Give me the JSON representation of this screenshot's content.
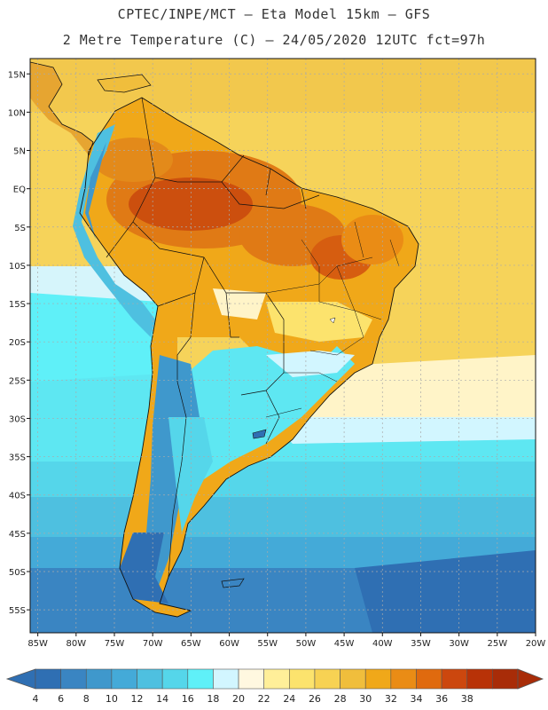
{
  "header": {
    "line1": "CPTEC/INPE/MCT –  Eta Model 15km – GFS",
    "line2": "2 Metre Temperature (C) – 24/05/2020 12UTC fct=97h"
  },
  "axes": {
    "lat_labels": [
      "15N",
      "10N",
      "5N",
      "EQ",
      "5S",
      "10S",
      "15S",
      "20S",
      "25S",
      "30S",
      "35S",
      "40S",
      "45S",
      "50S",
      "55S"
    ],
    "lon_labels": [
      "85W",
      "80W",
      "75W",
      "70W",
      "65W",
      "60W",
      "55W",
      "50W",
      "45W",
      "40W",
      "35W",
      "30W",
      "25W",
      "20W"
    ],
    "lat_range": [
      17,
      -58
    ],
    "lon_range": [
      -86,
      -20
    ]
  },
  "colorbar": {
    "labels": [
      "4",
      "6",
      "8",
      "10",
      "12",
      "14",
      "16",
      "18",
      "20",
      "22",
      "24",
      "26",
      "28",
      "30",
      "32",
      "34",
      "36",
      "38"
    ],
    "colors": [
      "#2f6fb3",
      "#3a85c2",
      "#3f98cc",
      "#44aad8",
      "#4ec0e0",
      "#55d6ea",
      "#5ff0f8",
      "#d2f6ff",
      "#fff8e0",
      "#ffef99",
      "#fce36d",
      "#f7d253",
      "#f0be3c",
      "#f0a819",
      "#ea8c15",
      "#e06a0e",
      "#cc470e",
      "#b83207",
      "#a82c08"
    ],
    "under_color": "#2f6fb3",
    "over_color": "#a82c08"
  },
  "legend_units": "C"
}
